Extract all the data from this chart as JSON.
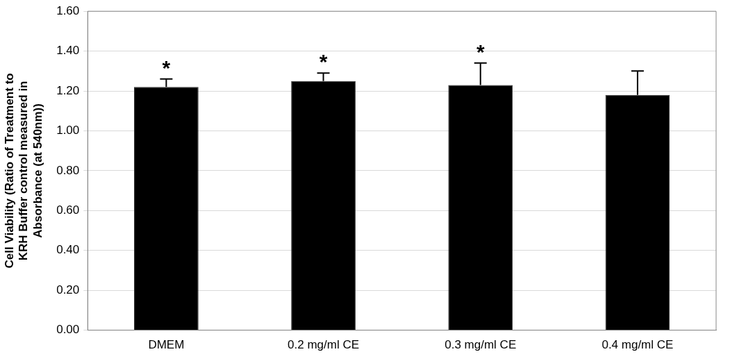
{
  "chart_data": {
    "type": "bar",
    "ylabel": "Cell Viability (Ratio of Treatment to KRH Buffer control measured in Absorbance (at 540nm))",
    "categories": [
      "DMEM",
      "0.2 mg/ml CE",
      "0.3 mg/ml CE",
      "0.4 mg/ml CE"
    ],
    "values": [
      1.22,
      1.25,
      1.23,
      1.18
    ],
    "errors": [
      [
        1.22,
        1.26
      ],
      [
        1.25,
        1.29
      ],
      [
        1.23,
        1.34
      ],
      [
        1.18,
        1.3
      ]
    ],
    "color": "#000000",
    "ylim": [
      0,
      1.6
    ],
    "yticks": [
      {
        "value": 0,
        "label": "0.00"
      },
      {
        "value": 0.2,
        "label": "0.20"
      },
      {
        "value": 0.4,
        "label": "0.40"
      },
      {
        "value": 0.6,
        "label": "0.60"
      },
      {
        "value": 0.8,
        "label": "0.80"
      },
      {
        "value": 1,
        "label": "1.00"
      },
      {
        "value": 1.2,
        "label": "1.20"
      },
      {
        "value": 1.4,
        "label": "1.40"
      },
      {
        "value": 1.6,
        "label": "1.60"
      }
    ],
    "grid": "y",
    "legend": false,
    "annotations": [
      {
        "text": "*",
        "x": "DMEM",
        "y": 1.26
      },
      {
        "text": "*",
        "x": "0.2 mg/ml CE",
        "y": 1.29
      },
      {
        "text": "*",
        "x": "0.3 mg/ml CE",
        "y": 1.34
      }
    ]
  }
}
